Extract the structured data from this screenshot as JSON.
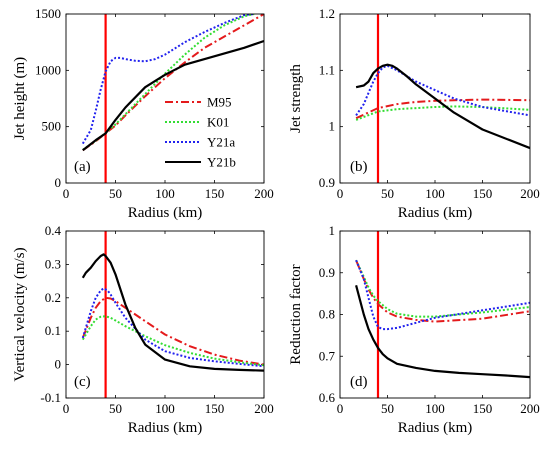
{
  "figure": {
    "legend": [
      {
        "name": "M95",
        "color": "#e41a1c",
        "dash": "dashdot"
      },
      {
        "name": "K01",
        "color": "#33dd33",
        "dash": "dotted"
      },
      {
        "name": "Y21a",
        "color": "#2222ee",
        "dash": "dotted"
      },
      {
        "name": "Y21b",
        "color": "#000000",
        "dash": "solid"
      }
    ],
    "marker_color": "#ff0000"
  },
  "chart_data": [
    {
      "type": "line",
      "panel_label": "(a)",
      "xlabel": "Radius (km)",
      "ylabel": "Jet height (m)",
      "xlim": [
        0,
        200
      ],
      "ylim": [
        0,
        1500
      ],
      "xticks": [
        "0",
        "50",
        "100",
        "150",
        "200"
      ],
      "yticks": [
        "0",
        "500",
        "1000",
        "1500"
      ],
      "grid": false,
      "legend_position": "center-right",
      "vertical_marker_x": 40,
      "series": [
        {
          "name": "M95",
          "x": [
            17,
            30,
            40,
            50,
            60,
            80,
            100,
            120,
            140,
            160,
            180,
            200
          ],
          "y": [
            290,
            370,
            440,
            510,
            600,
            770,
            930,
            1070,
            1200,
            1300,
            1400,
            1500
          ]
        },
        {
          "name": "K01",
          "x": [
            17,
            30,
            40,
            50,
            60,
            80,
            100,
            120,
            140,
            160,
            180,
            190
          ],
          "y": [
            295,
            375,
            445,
            520,
            610,
            790,
            970,
            1140,
            1290,
            1400,
            1480,
            1500
          ]
        },
        {
          "name": "Y21a",
          "x": [
            17,
            25,
            30,
            35,
            40,
            45,
            50,
            55,
            60,
            70,
            80,
            90,
            100,
            120,
            140,
            160,
            180,
            190
          ],
          "y": [
            350,
            470,
            640,
            830,
            990,
            1080,
            1110,
            1110,
            1100,
            1085,
            1080,
            1100,
            1140,
            1250,
            1340,
            1420,
            1490,
            1500
          ]
        },
        {
          "name": "Y21b",
          "x": [
            17,
            30,
            40,
            50,
            60,
            80,
            100,
            120,
            140,
            160,
            180,
            200
          ],
          "y": [
            290,
            380,
            440,
            560,
            670,
            850,
            960,
            1050,
            1100,
            1150,
            1200,
            1260
          ]
        }
      ]
    },
    {
      "type": "line",
      "panel_label": "(b)",
      "xlabel": "Radius (km)",
      "ylabel": "Jet strength",
      "xlim": [
        0,
        200
      ],
      "ylim": [
        0.9,
        1.2
      ],
      "xticks": [
        "0",
        "50",
        "100",
        "150",
        "200"
      ],
      "yticks": [
        "0.9",
        "1",
        "1.1",
        "1.2"
      ],
      "grid": false,
      "vertical_marker_x": 40,
      "series": [
        {
          "name": "M95",
          "x": [
            17,
            40,
            60,
            80,
            100,
            120,
            150,
            200
          ],
          "y": [
            1.015,
            1.033,
            1.04,
            1.044,
            1.046,
            1.047,
            1.048,
            1.047
          ]
        },
        {
          "name": "K01",
          "x": [
            17,
            40,
            60,
            80,
            100,
            120,
            150,
            200
          ],
          "y": [
            1.012,
            1.027,
            1.031,
            1.033,
            1.035,
            1.036,
            1.035,
            1.03
          ]
        },
        {
          "name": "Y21a",
          "x": [
            17,
            25,
            30,
            35,
            40,
            45,
            50,
            60,
            70,
            80,
            100,
            120,
            150,
            200
          ],
          "y": [
            1.02,
            1.04,
            1.06,
            1.08,
            1.095,
            1.105,
            1.108,
            1.1,
            1.09,
            1.08,
            1.065,
            1.05,
            1.035,
            1.02
          ]
        },
        {
          "name": "Y21b",
          "x": [
            17,
            25,
            30,
            35,
            40,
            45,
            50,
            55,
            60,
            70,
            80,
            100,
            120,
            150,
            200
          ],
          "y": [
            1.07,
            1.073,
            1.08,
            1.095,
            1.103,
            1.108,
            1.11,
            1.108,
            1.103,
            1.09,
            1.075,
            1.05,
            1.025,
            0.995,
            0.962
          ]
        }
      ]
    },
    {
      "type": "line",
      "panel_label": "(c)",
      "xlabel": "Radius (km)",
      "ylabel": "Vertical velocity (m/s)",
      "xlim": [
        0,
        200
      ],
      "ylim": [
        -0.1,
        0.4
      ],
      "xticks": [
        "0",
        "50",
        "100",
        "150",
        "200"
      ],
      "yticks": [
        "-0.1",
        "0",
        "0.1",
        "0.2",
        "0.3",
        "0.4"
      ],
      "grid": false,
      "vertical_marker_x": 40,
      "series": [
        {
          "name": "M95",
          "x": [
            17,
            25,
            30,
            35,
            40,
            45,
            50,
            60,
            80,
            100,
            125,
            150,
            175,
            200
          ],
          "y": [
            0.08,
            0.14,
            0.17,
            0.19,
            0.2,
            0.198,
            0.19,
            0.17,
            0.13,
            0.09,
            0.055,
            0.03,
            0.012,
            0.0
          ]
        },
        {
          "name": "K01",
          "x": [
            17,
            25,
            30,
            35,
            40,
            45,
            50,
            60,
            80,
            100,
            125,
            150,
            175,
            200
          ],
          "y": [
            0.075,
            0.115,
            0.135,
            0.143,
            0.145,
            0.14,
            0.132,
            0.115,
            0.085,
            0.058,
            0.035,
            0.018,
            0.007,
            -0.002
          ]
        },
        {
          "name": "Y21a",
          "x": [
            17,
            25,
            30,
            35,
            38,
            42,
            45,
            50,
            60,
            80,
            100,
            125,
            150,
            175,
            200
          ],
          "y": [
            0.08,
            0.16,
            0.2,
            0.222,
            0.228,
            0.222,
            0.21,
            0.185,
            0.14,
            0.075,
            0.04,
            0.02,
            0.01,
            0.002,
            -0.005
          ]
        },
        {
          "name": "Y21b",
          "x": [
            17,
            20,
            25,
            30,
            35,
            38,
            40,
            45,
            50,
            60,
            70,
            80,
            100,
            125,
            150,
            175,
            200
          ],
          "y": [
            0.26,
            0.275,
            0.29,
            0.31,
            0.325,
            0.33,
            0.325,
            0.305,
            0.27,
            0.18,
            0.11,
            0.06,
            0.015,
            -0.005,
            -0.013,
            -0.016,
            -0.018
          ]
        }
      ]
    },
    {
      "type": "line",
      "panel_label": "(d)",
      "xlabel": "Radius (km)",
      "ylabel": "Reduction factor",
      "xlim": [
        0,
        200
      ],
      "ylim": [
        0.6,
        1.0
      ],
      "xticks": [
        "0",
        "50",
        "100",
        "150",
        "200"
      ],
      "yticks": [
        "0.6",
        "0.7",
        "0.8",
        "0.9",
        "1"
      ],
      "grid": false,
      "vertical_marker_x": 40,
      "series": [
        {
          "name": "M95",
          "x": [
            17,
            25,
            30,
            35,
            40,
            50,
            60,
            80,
            100,
            150,
            200
          ],
          "y": [
            0.93,
            0.885,
            0.86,
            0.84,
            0.825,
            0.805,
            0.795,
            0.787,
            0.783,
            0.79,
            0.808
          ]
        },
        {
          "name": "K01",
          "x": [
            17,
            25,
            30,
            35,
            40,
            50,
            60,
            80,
            100,
            150,
            200
          ],
          "y": [
            0.93,
            0.89,
            0.865,
            0.845,
            0.832,
            0.813,
            0.802,
            0.795,
            0.795,
            0.805,
            0.818
          ]
        },
        {
          "name": "Y21a",
          "x": [
            17,
            25,
            30,
            35,
            40,
            45,
            50,
            60,
            80,
            100,
            150,
            200
          ],
          "y": [
            0.93,
            0.885,
            0.84,
            0.795,
            0.77,
            0.765,
            0.765,
            0.768,
            0.78,
            0.792,
            0.81,
            0.828
          ]
        },
        {
          "name": "Y21b",
          "x": [
            17,
            25,
            30,
            35,
            40,
            45,
            50,
            60,
            80,
            100,
            125,
            150,
            175,
            200
          ],
          "y": [
            0.87,
            0.8,
            0.765,
            0.74,
            0.72,
            0.705,
            0.695,
            0.682,
            0.672,
            0.665,
            0.66,
            0.657,
            0.654,
            0.65
          ]
        }
      ]
    }
  ]
}
